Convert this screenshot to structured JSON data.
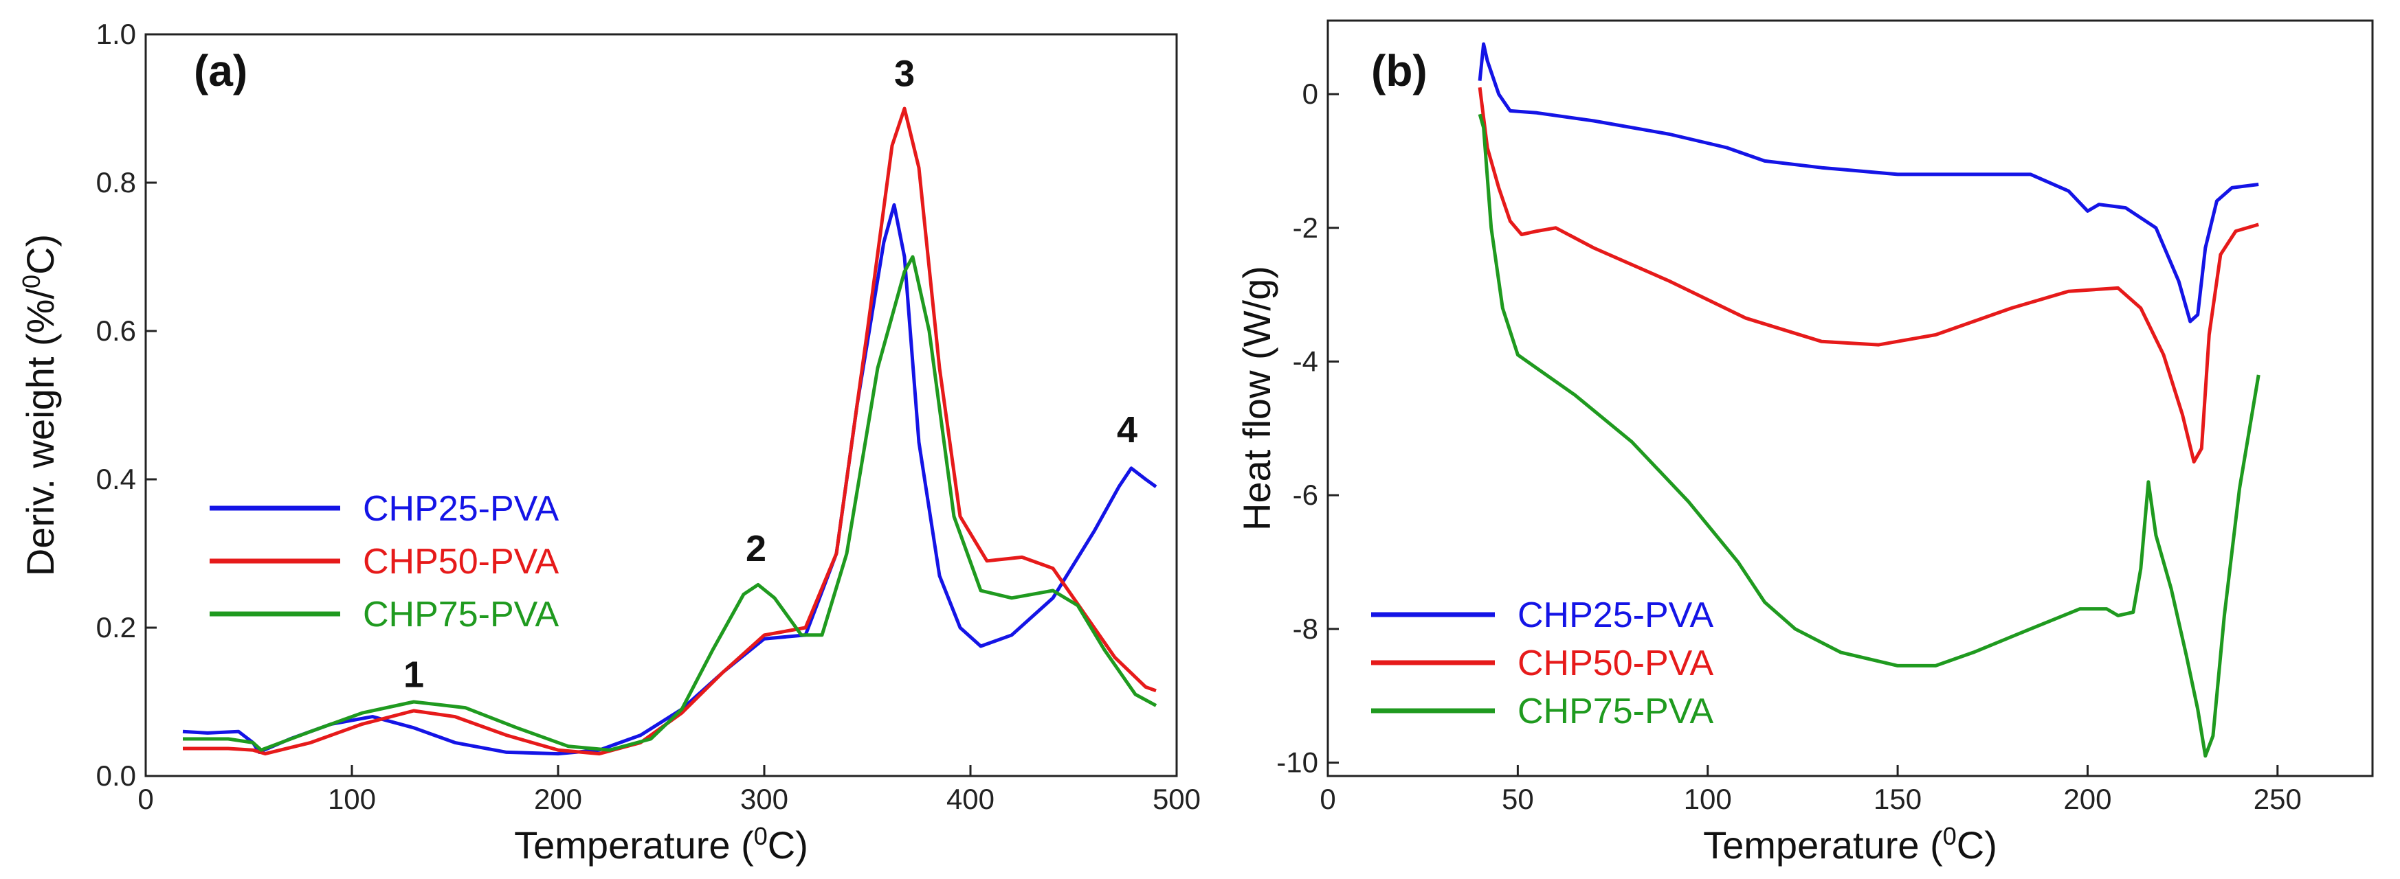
{
  "chart_data": [
    {
      "type": "line",
      "panel_label": "(a)",
      "xlabel": "Temperature (",
      "xlabel_sup": "0",
      "xlabel_end": "C)",
      "ylabel": "Deriv. weight (%/",
      "ylabel_sup": "0",
      "ylabel_end": "C)",
      "xlim": [
        0,
        500
      ],
      "ylim": [
        0,
        1.0
      ],
      "xticks": [
        0,
        100,
        200,
        300,
        400,
        500
      ],
      "xtick_labels": [
        "0",
        "100",
        "200",
        "300",
        "400",
        "500"
      ],
      "yticks": [
        0,
        0.2,
        0.4,
        0.6,
        0.8,
        1.0
      ],
      "ytick_labels": [
        "0.0",
        "0.2",
        "0.4",
        "0.6",
        "0.8",
        "1.0"
      ],
      "legend_position": "middle-left",
      "annotations": [
        {
          "text": "1",
          "x": 130,
          "y": 0.12
        },
        {
          "text": "2",
          "x": 296,
          "y": 0.29
        },
        {
          "text": "3",
          "x": 368,
          "y": 0.93
        },
        {
          "text": "4",
          "x": 476,
          "y": 0.45
        }
      ],
      "series": [
        {
          "name": "CHP25-PVA",
          "color": "#1414e6",
          "points": [
            [
              18,
              0.06
            ],
            [
              30,
              0.058
            ],
            [
              45,
              0.06
            ],
            [
              52,
              0.045
            ],
            [
              55,
              0.032
            ],
            [
              70,
              0.05
            ],
            [
              90,
              0.07
            ],
            [
              110,
              0.08
            ],
            [
              130,
              0.065
            ],
            [
              150,
              0.045
            ],
            [
              175,
              0.032
            ],
            [
              200,
              0.03
            ],
            [
              220,
              0.035
            ],
            [
              240,
              0.055
            ],
            [
              260,
              0.09
            ],
            [
              280,
              0.14
            ],
            [
              300,
              0.185
            ],
            [
              320,
              0.19
            ],
            [
              335,
              0.3
            ],
            [
              345,
              0.5
            ],
            [
              358,
              0.72
            ],
            [
              363,
              0.77
            ],
            [
              368,
              0.7
            ],
            [
              375,
              0.45
            ],
            [
              385,
              0.27
            ],
            [
              395,
              0.2
            ],
            [
              405,
              0.175
            ],
            [
              420,
              0.19
            ],
            [
              440,
              0.24
            ],
            [
              460,
              0.33
            ],
            [
              472,
              0.39
            ],
            [
              478,
              0.415
            ],
            [
              485,
              0.4
            ],
            [
              490,
              0.39
            ]
          ]
        },
        {
          "name": "CHP50-PVA",
          "color": "#e61a1a",
          "points": [
            [
              18,
              0.037
            ],
            [
              40,
              0.037
            ],
            [
              52,
              0.035
            ],
            [
              58,
              0.03
            ],
            [
              80,
              0.045
            ],
            [
              105,
              0.07
            ],
            [
              130,
              0.088
            ],
            [
              150,
              0.08
            ],
            [
              175,
              0.055
            ],
            [
              200,
              0.035
            ],
            [
              220,
              0.03
            ],
            [
              240,
              0.045
            ],
            [
              260,
              0.085
            ],
            [
              280,
              0.14
            ],
            [
              300,
              0.19
            ],
            [
              320,
              0.2
            ],
            [
              335,
              0.3
            ],
            [
              350,
              0.6
            ],
            [
              362,
              0.85
            ],
            [
              368,
              0.9
            ],
            [
              375,
              0.82
            ],
            [
              385,
              0.55
            ],
            [
              395,
              0.35
            ],
            [
              408,
              0.29
            ],
            [
              425,
              0.295
            ],
            [
              440,
              0.28
            ],
            [
              455,
              0.22
            ],
            [
              470,
              0.16
            ],
            [
              485,
              0.12
            ],
            [
              490,
              0.115
            ]
          ]
        },
        {
          "name": "CHP75-PVA",
          "color": "#1f9a1f",
          "points": [
            [
              18,
              0.05
            ],
            [
              40,
              0.05
            ],
            [
              52,
              0.045
            ],
            [
              56,
              0.035
            ],
            [
              80,
              0.06
            ],
            [
              105,
              0.085
            ],
            [
              130,
              0.1
            ],
            [
              155,
              0.092
            ],
            [
              180,
              0.065
            ],
            [
              205,
              0.04
            ],
            [
              225,
              0.035
            ],
            [
              245,
              0.05
            ],
            [
              260,
              0.09
            ],
            [
              275,
              0.17
            ],
            [
              290,
              0.245
            ],
            [
              297,
              0.258
            ],
            [
              305,
              0.24
            ],
            [
              318,
              0.19
            ],
            [
              328,
              0.19
            ],
            [
              340,
              0.3
            ],
            [
              355,
              0.55
            ],
            [
              368,
              0.68
            ],
            [
              372,
              0.7
            ],
            [
              380,
              0.6
            ],
            [
              392,
              0.35
            ],
            [
              405,
              0.25
            ],
            [
              420,
              0.24
            ],
            [
              440,
              0.25
            ],
            [
              452,
              0.23
            ],
            [
              465,
              0.17
            ],
            [
              480,
              0.11
            ],
            [
              490,
              0.095
            ]
          ]
        }
      ]
    },
    {
      "type": "line",
      "panel_label": "(b)",
      "xlabel": "Temperature (",
      "xlabel_sup": "0",
      "xlabel_end": "C)",
      "ylabel": "Heat flow (W/g)",
      "xlim": [
        0,
        275
      ],
      "ylim": [
        -10.2,
        1.1
      ],
      "xticks": [
        0,
        50,
        100,
        150,
        200,
        250
      ],
      "xtick_labels": [
        "0",
        "50",
        "100",
        "150",
        "200",
        "250"
      ],
      "yticks": [
        -10,
        -8,
        -6,
        -4,
        -2,
        0
      ],
      "ytick_labels": [
        "-10",
        "-8",
        "-6",
        "-4",
        "-2",
        "0"
      ],
      "legend_position": "bottom-left",
      "series": [
        {
          "name": "CHP25-PVA",
          "color": "#1414e6",
          "points": [
            [
              40,
              0.2
            ],
            [
              41,
              0.75
            ],
            [
              42,
              0.5
            ],
            [
              45,
              0.0
            ],
            [
              48,
              -0.25
            ],
            [
              55,
              -0.28
            ],
            [
              70,
              -0.4
            ],
            [
              90,
              -0.6
            ],
            [
              105,
              -0.8
            ],
            [
              115,
              -1.0
            ],
            [
              130,
              -1.1
            ],
            [
              150,
              -1.2
            ],
            [
              170,
              -1.2
            ],
            [
              185,
              -1.2
            ],
            [
              195,
              -1.45
            ],
            [
              200,
              -1.75
            ],
            [
              203,
              -1.65
            ],
            [
              210,
              -1.7
            ],
            [
              218,
              -2.0
            ],
            [
              224,
              -2.8
            ],
            [
              227,
              -3.4
            ],
            [
              229,
              -3.3
            ],
            [
              231,
              -2.3
            ],
            [
              234,
              -1.6
            ],
            [
              238,
              -1.4
            ],
            [
              245,
              -1.35
            ]
          ]
        },
        {
          "name": "CHP50-PVA",
          "color": "#e61a1a",
          "points": [
            [
              40,
              0.1
            ],
            [
              42,
              -0.8
            ],
            [
              45,
              -1.4
            ],
            [
              48,
              -1.9
            ],
            [
              51,
              -2.1
            ],
            [
              55,
              -2.05
            ],
            [
              60,
              -2.0
            ],
            [
              70,
              -2.3
            ],
            [
              90,
              -2.8
            ],
            [
              110,
              -3.35
            ],
            [
              130,
              -3.7
            ],
            [
              145,
              -3.75
            ],
            [
              160,
              -3.6
            ],
            [
              180,
              -3.2
            ],
            [
              195,
              -2.95
            ],
            [
              208,
              -2.9
            ],
            [
              214,
              -3.2
            ],
            [
              220,
              -3.9
            ],
            [
              225,
              -4.8
            ],
            [
              228,
              -5.5
            ],
            [
              230,
              -5.3
            ],
            [
              232,
              -3.6
            ],
            [
              235,
              -2.4
            ],
            [
              239,
              -2.05
            ],
            [
              245,
              -1.95
            ]
          ]
        },
        {
          "name": "CHP75-PVA",
          "color": "#1f9a1f",
          "points": [
            [
              40,
              -0.3
            ],
            [
              41,
              -0.5
            ],
            [
              43,
              -2.0
            ],
            [
              46,
              -3.2
            ],
            [
              50,
              -3.9
            ],
            [
              55,
              -4.1
            ],
            [
              65,
              -4.5
            ],
            [
              80,
              -5.2
            ],
            [
              95,
              -6.1
            ],
            [
              108,
              -7.0
            ],
            [
              115,
              -7.6
            ],
            [
              123,
              -8.0
            ],
            [
              135,
              -8.35
            ],
            [
              150,
              -8.55
            ],
            [
              160,
              -8.55
            ],
            [
              170,
              -8.35
            ],
            [
              185,
              -8.0
            ],
            [
              198,
              -7.7
            ],
            [
              205,
              -7.7
            ],
            [
              208,
              -7.8
            ],
            [
              212,
              -7.75
            ],
            [
              214,
              -7.1
            ],
            [
              216,
              -5.8
            ],
            [
              218,
              -6.6
            ],
            [
              222,
              -7.4
            ],
            [
              226,
              -8.4
            ],
            [
              229,
              -9.2
            ],
            [
              231,
              -9.9
            ],
            [
              233,
              -9.6
            ],
            [
              236,
              -7.8
            ],
            [
              240,
              -5.9
            ],
            [
              245,
              -4.2
            ]
          ]
        }
      ]
    }
  ]
}
